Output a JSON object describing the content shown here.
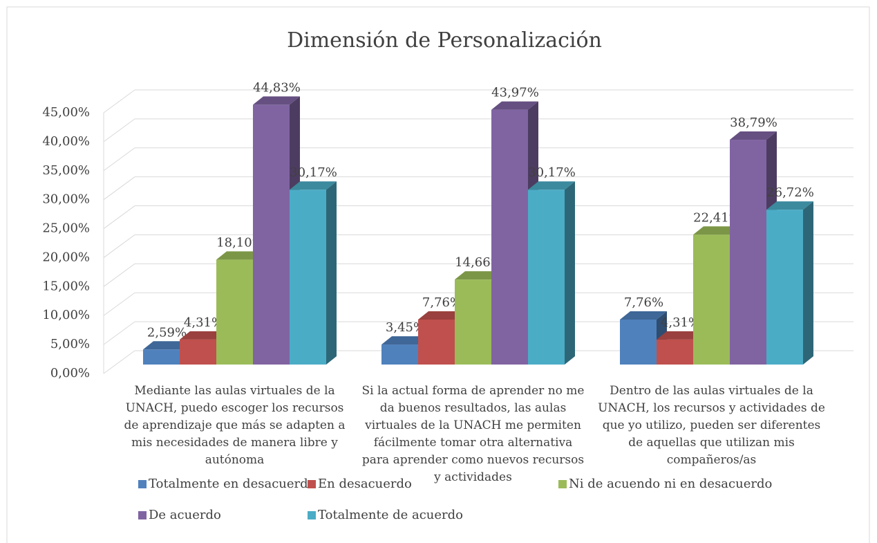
{
  "chart_data": {
    "type": "bar3d",
    "title": "Dimensión de Personalización",
    "categories": [
      "Mediante las aulas virtuales de la UNACH, puedo escoger los recursos de aprendizaje que más se adapten a mis necesidades de manera libre y autónoma",
      "Si la actual forma de aprender no me da buenos resultados, las aulas virtuales de la UNACH me permiten fácilmente tomar otra alternativa para aprender como nuevos recursos y actividades",
      "Dentro de las aulas virtuales de la UNACH, los recursos y actividades de que yo utilizo, pueden ser diferentes de aquellas que utilizan mis compañeros/as"
    ],
    "series": [
      {
        "name": "Totalmente en desacuerdo",
        "color": "#4f81bd",
        "values": [
          2.59,
          3.45,
          7.76
        ],
        "value_labels": [
          "2,59%",
          "3,45%",
          "7,76%"
        ]
      },
      {
        "name": "En desacuerdo",
        "color": "#c0504d",
        "values": [
          4.31,
          7.76,
          4.31
        ],
        "value_labels": [
          "4,31%",
          "7,76%",
          "4,31%"
        ]
      },
      {
        "name": "Ni de acuendo ni en desacuerdo",
        "color": "#9bbb59",
        "values": [
          18.1,
          14.66,
          22.41
        ],
        "value_labels": [
          "18,10%",
          "14,66%",
          "22,41%"
        ]
      },
      {
        "name": "De acuerdo",
        "color": "#8064a2",
        "values": [
          44.83,
          43.97,
          38.79
        ],
        "value_labels": [
          "44,83%",
          "43,97%",
          "38,79%"
        ]
      },
      {
        "name": "Totalmente de acuerdo",
        "color": "#4bacc6",
        "values": [
          30.17,
          30.17,
          26.72
        ],
        "value_labels": [
          "30,17%",
          "30,17%",
          "26,72%"
        ]
      }
    ],
    "ylim": [
      0,
      45
    ],
    "yticks": [
      {
        "value": 0,
        "label": "0,00%"
      },
      {
        "value": 5,
        "label": "5,00%"
      },
      {
        "value": 10,
        "label": "10,00%"
      },
      {
        "value": 15,
        "label": "15,00%"
      },
      {
        "value": 20,
        "label": "20,00%"
      },
      {
        "value": 25,
        "label": "25,00%"
      },
      {
        "value": 30,
        "label": "30,00%"
      },
      {
        "value": 35,
        "label": "35,00%"
      },
      {
        "value": 40,
        "label": "40,00%"
      },
      {
        "value": 45,
        "label": "45,00%"
      }
    ],
    "grid": true,
    "legend": "bottom"
  }
}
